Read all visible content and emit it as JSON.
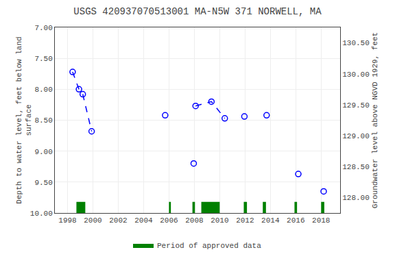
{
  "chart_data": {
    "type": "line",
    "title": "USGS 420937070513001 MA-N5W 371 NORWELL, MA",
    "ylabel": "Depth to water level, feet below land\nsurface",
    "y2label": "Groundwater level above NGVD 1929, feet",
    "xlim": [
      1997,
      2019.5
    ],
    "xticks": [
      1998,
      2000,
      2002,
      2004,
      2006,
      2008,
      2010,
      2012,
      2014,
      2016,
      2018
    ],
    "ylim": [
      10.0,
      7.0
    ],
    "yticks": [
      {
        "value": 7.0,
        "label": "7.00"
      },
      {
        "value": 7.5,
        "label": "7.50"
      },
      {
        "value": 8.0,
        "label": "8.00"
      },
      {
        "value": 8.5,
        "label": "8.50"
      },
      {
        "value": 9.0,
        "label": "9.00"
      },
      {
        "value": 9.5,
        "label": "9.50"
      },
      {
        "value": 10.0,
        "label": "10.00"
      }
    ],
    "y2lim": [
      127.75,
      130.75
    ],
    "y2ticks": [
      {
        "value": 128.0,
        "label": "128.00"
      },
      {
        "value": 128.5,
        "label": "128.50"
      },
      {
        "value": 129.0,
        "label": "129.00"
      },
      {
        "value": 129.5,
        "label": "129.50"
      },
      {
        "value": 130.0,
        "label": "130.00"
      },
      {
        "value": 130.5,
        "label": "130.50"
      }
    ],
    "grid": true,
    "legend": "bottom",
    "series": [
      {
        "x": [
          1998.4,
          1998.9,
          1999.2,
          1999.9
        ],
        "values": [
          7.72,
          8.0,
          8.08,
          8.68
        ],
        "color": "#0000ff",
        "line_style": "dashed",
        "marker": "open circle"
      },
      {
        "x": [
          2008.1,
          2009.35,
          2010.4
        ],
        "values": [
          8.27,
          8.2,
          8.47
        ],
        "color": "#0000ff",
        "line_style": "dashed",
        "marker": "open circle"
      },
      {
        "type": "scatter",
        "x": [
          2005.7,
          2007.95,
          2011.95,
          2013.7,
          2016.2,
          2018.2
        ],
        "values": [
          8.42,
          9.2,
          8.44,
          8.42,
          9.37,
          9.65
        ],
        "color": "#0000ff",
        "marker": "open circle"
      },
      {
        "name": "Period of approved data",
        "type": "span",
        "color": "#008000",
        "x": [
          [
            1998.7,
            1999.4
          ],
          [
            2006.0,
            2006.15
          ],
          [
            2007.85,
            2008.05
          ],
          [
            2008.55,
            2010.0
          ],
          [
            2011.9,
            2012.15
          ],
          [
            2013.4,
            2013.65
          ],
          [
            2015.9,
            2016.1
          ],
          [
            2018.0,
            2018.25
          ]
        ]
      }
    ]
  }
}
